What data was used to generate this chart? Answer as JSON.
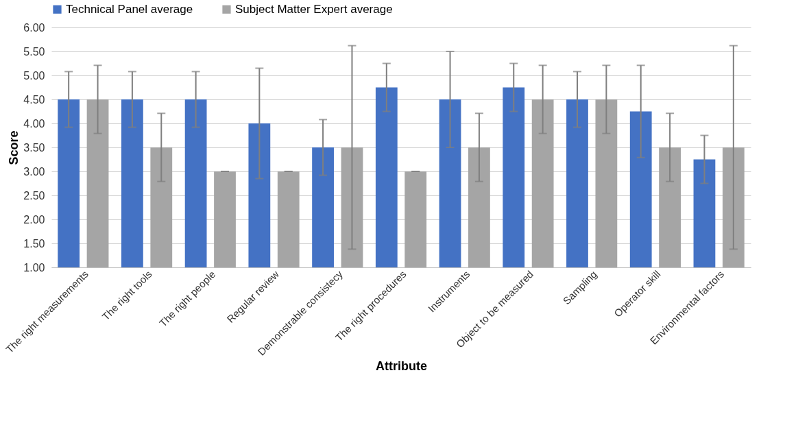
{
  "chart_data": {
    "type": "bar",
    "xlabel": "Attribute",
    "ylabel": "Score",
    "categories": [
      "The right measurements",
      "The right tools",
      "The right people",
      "Regular review",
      "Demonstrable consistecy",
      "The right procedures",
      "Instruments",
      "Object to be measured",
      "Sampling",
      "Operator skill",
      "Environmental factors"
    ],
    "series": [
      {
        "name": "Technical Panel average",
        "color": "#4472c4",
        "values": [
          4.5,
          4.5,
          4.5,
          4.0,
          3.5,
          4.75,
          4.5,
          4.75,
          4.5,
          4.25,
          3.25
        ],
        "errors": [
          0.58,
          0.58,
          0.58,
          1.15,
          0.58,
          0.5,
          1.0,
          0.5,
          0.58,
          0.96,
          0.5
        ]
      },
      {
        "name": "Subject Matter Expert average",
        "color": "#a5a5a5",
        "values": [
          4.5,
          3.5,
          3.0,
          3.0,
          3.5,
          3.0,
          3.5,
          4.5,
          4.5,
          3.5,
          3.5
        ],
        "errors": [
          0.71,
          0.71,
          0,
          0,
          2.12,
          0,
          0.71,
          0.71,
          0.71,
          0.71,
          2.12
        ]
      }
    ],
    "ylim": [
      1.0,
      6.0
    ],
    "yticks": [
      {
        "value": 1,
        "label": "1.00"
      },
      {
        "value": 1.5,
        "label": "1.50"
      },
      {
        "value": 2,
        "label": "2.00"
      },
      {
        "value": 2.5,
        "label": "2.50"
      },
      {
        "value": 3,
        "label": "3.00"
      },
      {
        "value": 3.5,
        "label": "3.50"
      },
      {
        "value": 4,
        "label": "4.00"
      },
      {
        "value": 4.5,
        "label": "4.50"
      },
      {
        "value": 5,
        "label": "5.00"
      },
      {
        "value": 5.5,
        "label": "5.50"
      },
      {
        "value": 6,
        "label": "6.00"
      }
    ],
    "grid": "y",
    "legend": "top"
  }
}
